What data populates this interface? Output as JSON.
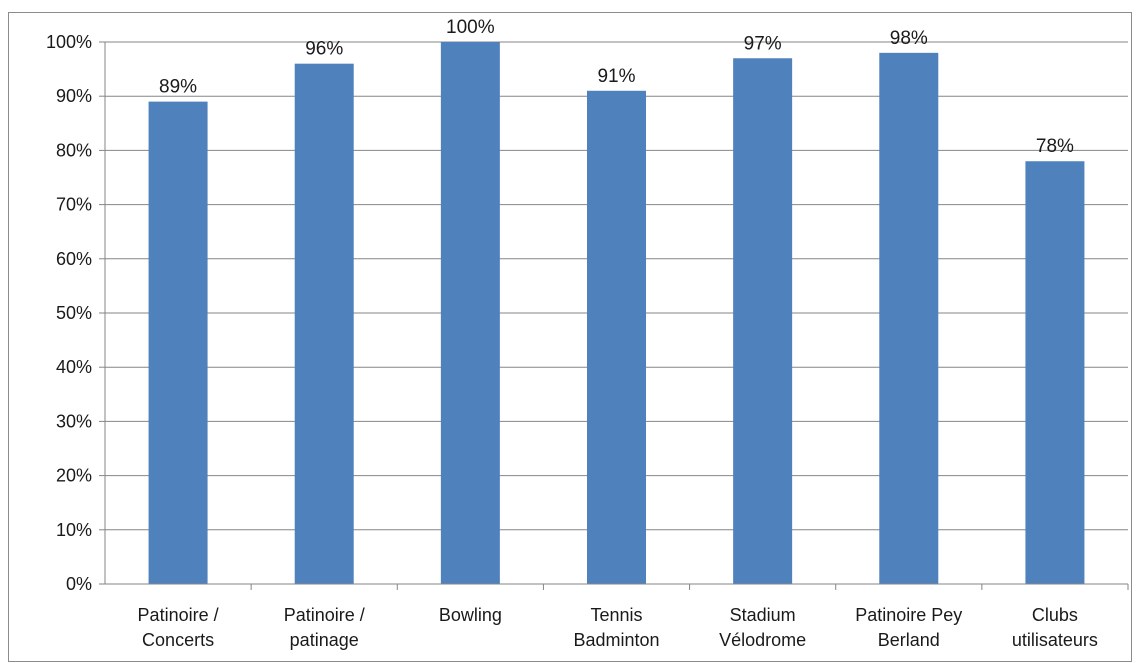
{
  "chart_data": {
    "type": "bar",
    "title": "",
    "xlabel": "",
    "ylabel": "",
    "categories": [
      [
        "Patinoire /",
        "Concerts"
      ],
      [
        "Patinoire /",
        "patinage"
      ],
      [
        "Bowling"
      ],
      [
        "Tennis",
        "Badminton"
      ],
      [
        "Stadium",
        "Vélodrome"
      ],
      [
        "Patinoire Pey",
        "Berland"
      ],
      [
        "Clubs",
        "utilisateurs"
      ]
    ],
    "values": [
      89,
      96,
      100,
      91,
      97,
      98,
      78
    ],
    "data_labels": [
      "89%",
      "96%",
      "100%",
      "91%",
      "97%",
      "98%",
      "78%"
    ],
    "ylim": [
      0,
      100
    ],
    "yticks": [
      0,
      10,
      20,
      30,
      40,
      50,
      60,
      70,
      80,
      90,
      100
    ],
    "ytick_labels": [
      "0%",
      "10%",
      "20%",
      "30%",
      "40%",
      "50%",
      "60%",
      "70%",
      "80%",
      "90%",
      "100%"
    ],
    "grid": true,
    "legend": "none",
    "colors": {
      "bar": "#4f81bd",
      "grid": "#868686",
      "axis": "#868686"
    }
  }
}
